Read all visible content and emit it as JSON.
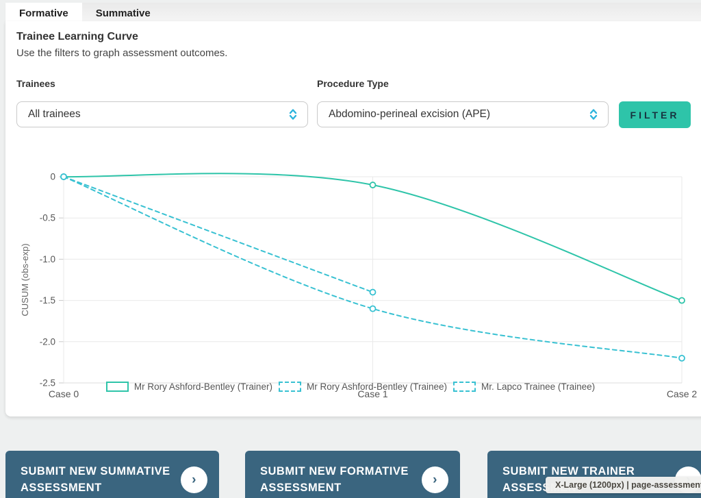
{
  "tabs": [
    {
      "label": "Formative",
      "active": true
    },
    {
      "label": "Summative",
      "active": false
    }
  ],
  "header": {
    "title": "Trainee Learning Curve",
    "subtitle": "Use the filters to graph assessment outcomes."
  },
  "filters": {
    "trainees_label": "Trainees",
    "trainees_value": "All trainees",
    "procedure_label": "Procedure Type",
    "procedure_value": "Abdomino-perineal excision (APE)",
    "filter_button": "FILTER"
  },
  "chart_data": {
    "type": "line",
    "x_categories": [
      "Case 0",
      "Case 1",
      "Case 2"
    ],
    "ylabel": "CUSUM (obs-exp)",
    "ylim": [
      -2.5,
      0
    ],
    "yticks": [
      0,
      -0.5,
      -1.0,
      -1.5,
      -2.0,
      -2.5
    ],
    "grid": true,
    "legend_position": "bottom",
    "series": [
      {
        "name": "Mr Rory Ashford-Bentley (Trainer)",
        "style": "solid",
        "color": "#2ec4a9",
        "values": [
          0,
          -0.1,
          -1.5
        ]
      },
      {
        "name": "Mr Rory Ashford-Bentley (Trainee)",
        "style": "dashed",
        "color": "#38c1d2",
        "values": [
          0,
          -1.4,
          null
        ]
      },
      {
        "name": "Mr. Lapco Trainee (Trainee)",
        "style": "dashed",
        "color": "#38c1d2",
        "values": [
          0,
          -1.6,
          -2.2
        ]
      }
    ]
  },
  "actions": [
    {
      "label": "SUBMIT NEW SUMMATIVE ASSESSMENT"
    },
    {
      "label": "SUBMIT NEW FORMATIVE ASSESSMENT"
    },
    {
      "label": "SUBMIT NEW TRAINER ASSESSMENT"
    }
  ],
  "overlay": {
    "text": "X-Large (1200px) | page-assessment-outcome"
  },
  "colors": {
    "accent_teal": "#2ec4a9",
    "dashed_cyan": "#38c1d2",
    "chevron_blue": "#2cb3dc",
    "action_button_bg": "#3a657f",
    "filter_text": "#17333f"
  }
}
